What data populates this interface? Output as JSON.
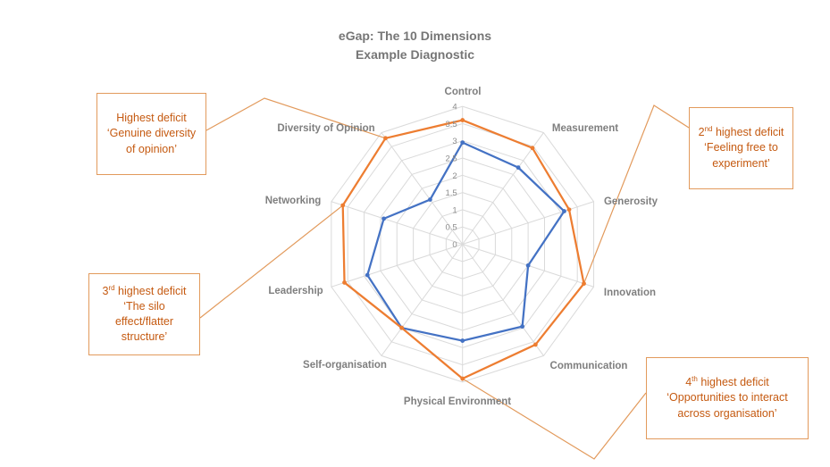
{
  "title": {
    "line1": "eGap: The 10 Dimensions",
    "line2": "Example Diagnostic"
  },
  "chart_data": {
    "type": "radar",
    "categories": [
      "Control",
      "Measurement",
      "Generosity",
      "Innovation",
      "Communication",
      "Physical Environment",
      "Self-organisation",
      "Leadership",
      "Networking",
      "Diversity of Opinion"
    ],
    "series": [
      {
        "name": "blue-series",
        "color": "#4472C4",
        "values": [
          2.95,
          2.75,
          3.1,
          2.0,
          2.95,
          2.8,
          3.0,
          2.9,
          2.4,
          1.6
        ]
      },
      {
        "name": "orange-series",
        "color": "#ED7D31",
        "values": [
          3.6,
          3.45,
          3.25,
          3.7,
          3.6,
          3.9,
          3.0,
          3.6,
          3.65,
          3.8
        ]
      }
    ],
    "axis": {
      "min": 0,
      "max": 4,
      "step": 0.5,
      "tick_labels": [
        "0",
        "0.5",
        "1",
        "1.5",
        "2",
        "2.5",
        "3",
        "3.5",
        "4"
      ]
    },
    "grid": true,
    "legend": "none",
    "title": "eGap: The 10 Dimensions Example Diagnostic"
  },
  "annotations": [
    {
      "num": "",
      "sup": "",
      "rest": "Highest deficit ‘Genuine diversity of opinion’"
    },
    {
      "num": "2",
      "sup": "nd",
      "rest": " highest deficit ‘Feeling free to experiment’"
    },
    {
      "num": "3",
      "sup": "rd",
      "rest": " highest deficit ‘The silo effect/flatter structure’"
    },
    {
      "num": "4",
      "sup": "th",
      "rest": " highest deficit ‘Opportunities to interact across organisation’"
    }
  ],
  "colors": {
    "orange_series": "#ED7D31",
    "blue_series": "#4472C4",
    "gridline": "#DADADA",
    "tick_label": "#8C8C8C",
    "category_label": "#7F7F7F",
    "title_text": "#767676",
    "callout_border": "#E29A5C",
    "callout_text": "#C55A11"
  }
}
